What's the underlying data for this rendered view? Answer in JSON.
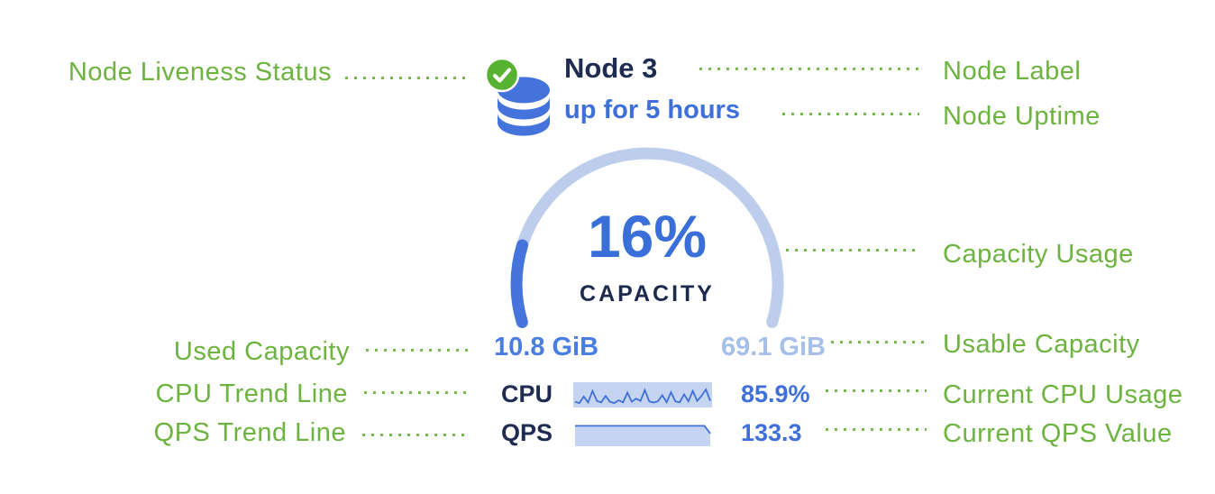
{
  "colors": {
    "annotation_green": "#6db33f",
    "leader_green": "#7ab84f",
    "navy": "#1e2c52",
    "blue": "#3f70d9",
    "used_blue": "#4a7de0",
    "usable_blue": "#a6bfea",
    "track_blue": "#bdcdec",
    "arc_blue": "#4474dc",
    "spark_bg": "#c5d4f0",
    "spark_line": "#3f6fd8",
    "check_green": "#56b230",
    "db_blue": "#4473db"
  },
  "node": {
    "label": "Node 3",
    "uptime": "up for 5 hours",
    "liveness_icon": "check-circle-icon",
    "node_icon": "database-icon"
  },
  "gauge": {
    "percent": 16,
    "percent_label": "16%",
    "caption": "CAPACITY",
    "used": "10.8 GiB",
    "usable": "69.1 GiB"
  },
  "metrics": {
    "cpu": {
      "label": "CPU",
      "value": "85.9%",
      "trend_style": "box",
      "trend": [
        0.18,
        0.12,
        0.42,
        0.15,
        0.68,
        0.22,
        0.15,
        0.45,
        0.18,
        0.12,
        0.25,
        0.15,
        0.6,
        0.18,
        0.32,
        0.22,
        0.72,
        0.2,
        0.14,
        0.2,
        0.48,
        0.16,
        0.62,
        0.2,
        0.16,
        0.52,
        0.2,
        0.68,
        0.22,
        0.45,
        0.75,
        0.22
      ]
    },
    "qps": {
      "label": "QPS",
      "value": "133.3",
      "trend_style": "area",
      "trend": [
        0.9,
        0.9,
        0.9,
        0.9,
        0.9,
        0.9,
        0.9,
        0.9,
        0.9,
        0.9,
        0.9,
        0.9,
        0.9,
        0.9,
        0.9,
        0.9,
        0.9,
        0.9,
        0.9,
        0.9,
        0.9,
        0.9,
        0.9,
        0.55
      ]
    }
  },
  "annotations": {
    "left": [
      "Node Liveness Status",
      "Used Capacity",
      "CPU Trend Line",
      "QPS Trend Line"
    ],
    "right": [
      "Node Label",
      "Node Uptime",
      "Capacity Usage",
      "Usable Capacity",
      "Current CPU Usage",
      "Current QPS Value"
    ]
  }
}
